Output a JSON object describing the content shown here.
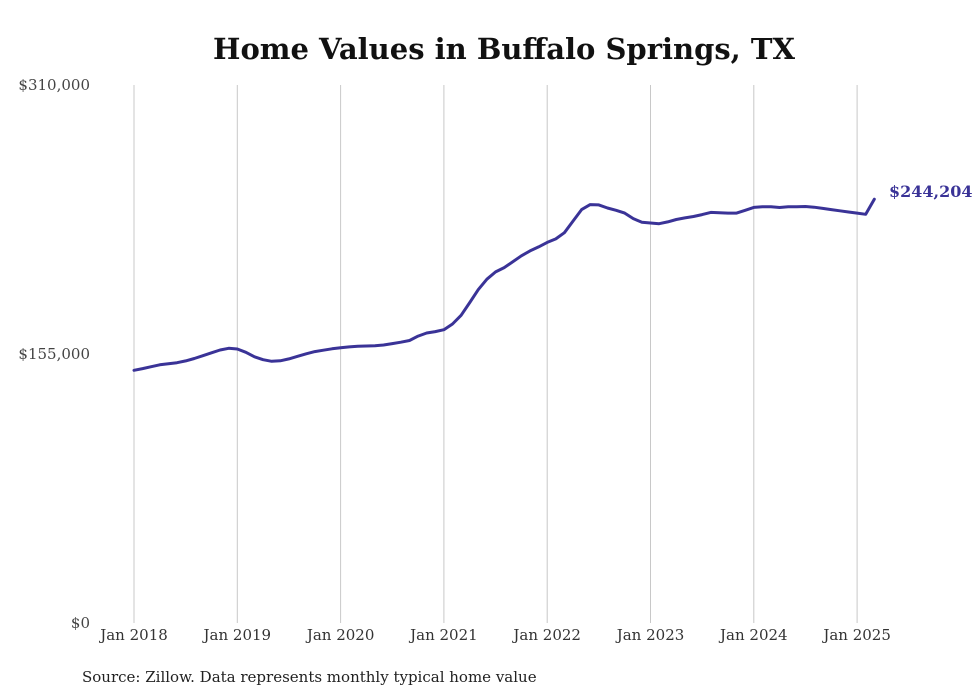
{
  "chart_data": {
    "type": "line",
    "title": "Home Values in Buffalo Springs, TX",
    "xlabel": "",
    "ylabel": "",
    "ylim": [
      0,
      310000
    ],
    "yticks": [
      {
        "value": 0,
        "label": "$0"
      },
      {
        "value": 155000,
        "label": "$155,000"
      },
      {
        "value": 310000,
        "label": "$310,000"
      }
    ],
    "xticks": [
      "Jan 2018",
      "Jan 2019",
      "Jan 2020",
      "Jan 2021",
      "Jan 2022",
      "Jan 2023",
      "Jan 2024",
      "Jan 2025"
    ],
    "grid": "vertical",
    "line_color": "#3a3397",
    "end_label": "$244,204",
    "series": [
      {
        "x": [
          "2018-01",
          "2018-02",
          "2018-03",
          "2018-04",
          "2018-05",
          "2018-06",
          "2018-07",
          "2018-08",
          "2018-09",
          "2018-10",
          "2018-11",
          "2018-12",
          "2019-01",
          "2019-02",
          "2019-03",
          "2019-04",
          "2019-05",
          "2019-06",
          "2019-07",
          "2019-08",
          "2019-09",
          "2019-10",
          "2019-11",
          "2019-12",
          "2020-01",
          "2020-02",
          "2020-03",
          "2020-04",
          "2020-05",
          "2020-06",
          "2020-07",
          "2020-08",
          "2020-09",
          "2020-10",
          "2020-11",
          "2020-12",
          "2021-01",
          "2021-02",
          "2021-03",
          "2021-04",
          "2021-05",
          "2021-06",
          "2021-07",
          "2021-08",
          "2021-09",
          "2021-10",
          "2021-11",
          "2021-12",
          "2022-01",
          "2022-02",
          "2022-03",
          "2022-04",
          "2022-05",
          "2022-06",
          "2022-07",
          "2022-08",
          "2022-09",
          "2022-10",
          "2022-11",
          "2022-12",
          "2023-01",
          "2023-02",
          "2023-03",
          "2023-04",
          "2023-05",
          "2023-06",
          "2023-07",
          "2023-08",
          "2023-09",
          "2023-10",
          "2023-11",
          "2023-12",
          "2024-01",
          "2024-02",
          "2024-03",
          "2024-04",
          "2024-05",
          "2024-06",
          "2024-07",
          "2024-08",
          "2024-09",
          "2024-10",
          "2024-11",
          "2024-12",
          "2025-01",
          "2025-02",
          "2025-03"
        ],
        "values": [
          145600,
          146600,
          147700,
          148800,
          149400,
          150000,
          151000,
          152400,
          154000,
          155700,
          157300,
          158300,
          157900,
          156000,
          153400,
          151700,
          150800,
          151100,
          152200,
          153700,
          155100,
          156400,
          157200,
          158000,
          158600,
          159100,
          159500,
          159600,
          159700,
          160200,
          161000,
          161800,
          162800,
          165300,
          167100,
          167900,
          169000,
          172300,
          177300,
          184600,
          192100,
          198100,
          202300,
          204800,
          208100,
          211600,
          214400,
          216700,
          219300,
          221300,
          224900,
          231600,
          238200,
          241100,
          240900,
          239100,
          237800,
          236200,
          233000,
          230900,
          230500,
          230100,
          231100,
          232500,
          233400,
          234200,
          235300,
          236600,
          236400,
          236200,
          236200,
          237800,
          239500,
          239800,
          239800,
          239400,
          239800,
          239900,
          240000,
          239600,
          238900,
          238200,
          237500,
          236800,
          236200,
          235500,
          244204
        ]
      }
    ]
  },
  "footer": {
    "source": "Source: Zillow. Data represents monthly typical home value"
  }
}
